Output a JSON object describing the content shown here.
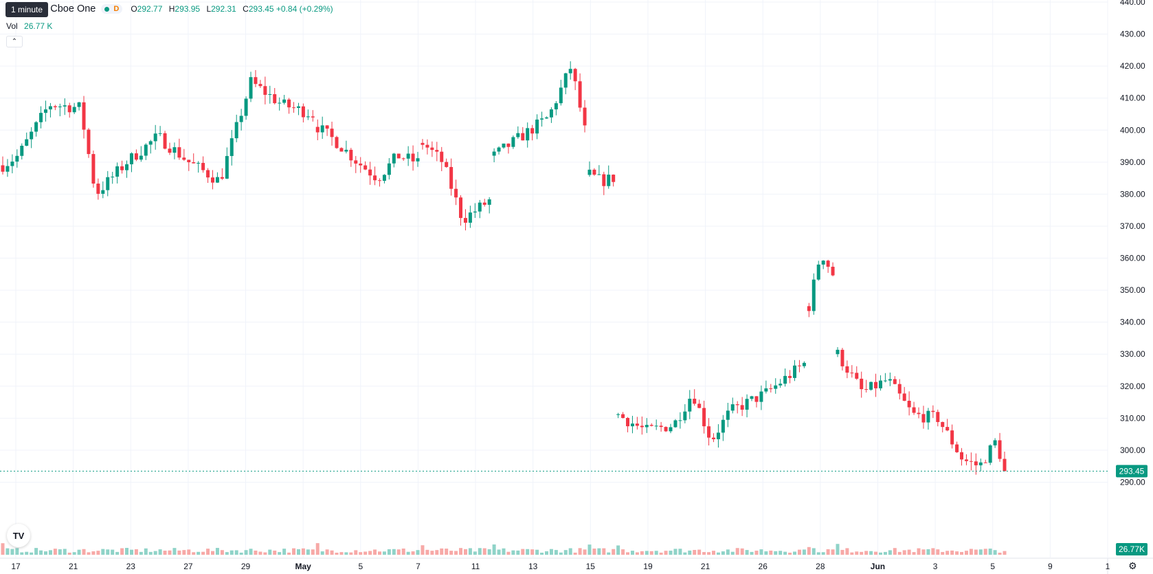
{
  "legend": {
    "title": "Inc. · 1h · Cboe One",
    "market_status_letter": "D",
    "open_label": "O",
    "open": "292.77",
    "high_label": "H",
    "high": "293.95",
    "low_label": "L",
    "low": "292.31",
    "close_label": "C",
    "close": "293.45",
    "change": "+0.84 (+0.29%)"
  },
  "tooltip": "1 minute",
  "volume": {
    "label": "Vol",
    "value": "26.77 K",
    "axis_badge": "26.77K"
  },
  "last_price_badge": "293.45",
  "colors": {
    "up": "#089981",
    "down": "#f23645",
    "up_volume": "#8fd3c8",
    "down_volume": "#f7a9a7"
  },
  "icons": {
    "collapse": "chevron-up-icon",
    "logo": "tradingview-logo-icon",
    "settings": "gear-icon"
  },
  "chart_data": {
    "type": "candlestick",
    "y_axis": {
      "min": 280,
      "max": 440,
      "ticks": [
        "290.00",
        "300.00",
        "310.00",
        "320.00",
        "330.00",
        "340.00",
        "350.00",
        "360.00",
        "370.00",
        "380.00",
        "390.00",
        "400.00",
        "410.00",
        "420.00",
        "430.00",
        "440.00"
      ]
    },
    "x_axis": {
      "labels": [
        "17",
        "21",
        "23",
        "27",
        "29",
        "May",
        "5",
        "7",
        "11",
        "13",
        "15",
        "19",
        "21",
        "26",
        "28",
        "Jun",
        "3",
        "5",
        "9",
        "1"
      ]
    },
    "last_price": 293.45,
    "grid": true,
    "segments": [
      {
        "bars": 66,
        "start": 389,
        "points": [
          [
            0.05,
            392
          ],
          [
            0.15,
            408
          ],
          [
            0.25,
            407
          ],
          [
            0.3,
            380
          ],
          [
            0.4,
            390
          ],
          [
            0.5,
            398
          ],
          [
            0.6,
            390
          ],
          [
            0.7,
            384
          ],
          [
            0.8,
            415
          ],
          [
            0.9,
            408
          ],
          [
            1,
            405
          ]
        ]
      },
      {
        "bars": 22,
        "start": 401,
        "points": [
          [
            0.2,
            396
          ],
          [
            0.4,
            390
          ],
          [
            0.6,
            385
          ],
          [
            0.8,
            392
          ],
          [
            1,
            390
          ]
        ]
      },
      {
        "bars": 15,
        "start": 396,
        "points": [
          [
            0.3,
            390
          ],
          [
            0.6,
            372
          ],
          [
            1,
            378
          ]
        ]
      },
      {
        "bars": 20,
        "start": 392,
        "points": [
          [
            0.3,
            398
          ],
          [
            0.6,
            404
          ],
          [
            0.85,
            420
          ],
          [
            1,
            400
          ]
        ]
      },
      {
        "bars": 6,
        "start": 386,
        "points": [
          [
            0.5,
            384
          ],
          [
            1,
            385
          ]
        ]
      },
      {
        "bars": 40,
        "start": 311,
        "points": [
          [
            0.15,
            306
          ],
          [
            0.3,
            308
          ],
          [
            0.4,
            318
          ],
          [
            0.5,
            303
          ],
          [
            0.6,
            312
          ],
          [
            0.8,
            318
          ],
          [
            1,
            327
          ]
        ]
      },
      {
        "bars": 6,
        "start": 345,
        "points": [
          [
            0.5,
            362
          ],
          [
            1,
            355
          ]
        ]
      },
      {
        "bars": 36,
        "start": 330,
        "points": [
          [
            0.15,
            318
          ],
          [
            0.3,
            322
          ],
          [
            0.45,
            311
          ],
          [
            0.6,
            310
          ],
          [
            0.75,
            297
          ],
          [
            0.85,
            295
          ],
          [
            0.95,
            303
          ],
          [
            1,
            293
          ]
        ]
      }
    ]
  }
}
